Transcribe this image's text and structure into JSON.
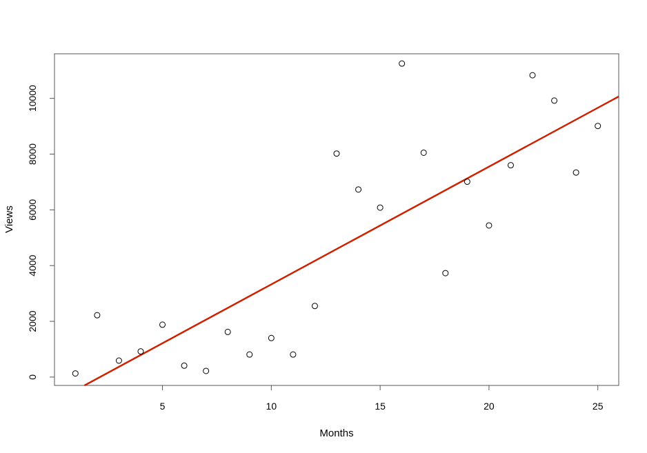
{
  "chart_data": {
    "type": "scatter",
    "xlabel": "Months",
    "ylabel": "Views",
    "xlim": [
      0.04,
      25.96
    ],
    "ylim": [
      -300,
      11600
    ],
    "x_ticks": [
      5,
      10,
      15,
      20,
      25
    ],
    "y_ticks": [
      0,
      2000,
      4000,
      6000,
      8000,
      10000
    ],
    "grid": false,
    "series": [
      {
        "marker": "open-circle",
        "color": "#000000",
        "x": [
          1,
          2,
          3,
          4,
          5,
          6,
          7,
          8,
          9,
          10,
          11,
          12,
          13,
          14,
          15,
          16,
          17,
          18,
          19,
          20,
          21,
          22,
          23,
          24,
          25
        ],
        "y": [
          130,
          2220,
          590,
          920,
          1880,
          410,
          220,
          1620,
          810,
          1400,
          810,
          2550,
          8020,
          6730,
          6080,
          11250,
          8050,
          3730,
          7010,
          5440,
          7600,
          10830,
          9920,
          7340,
          9010
        ]
      }
    ],
    "trend_line": {
      "type": "linear-fit",
      "color": "#cc2200",
      "intercept": -898.6,
      "slope": 422.4
    }
  }
}
